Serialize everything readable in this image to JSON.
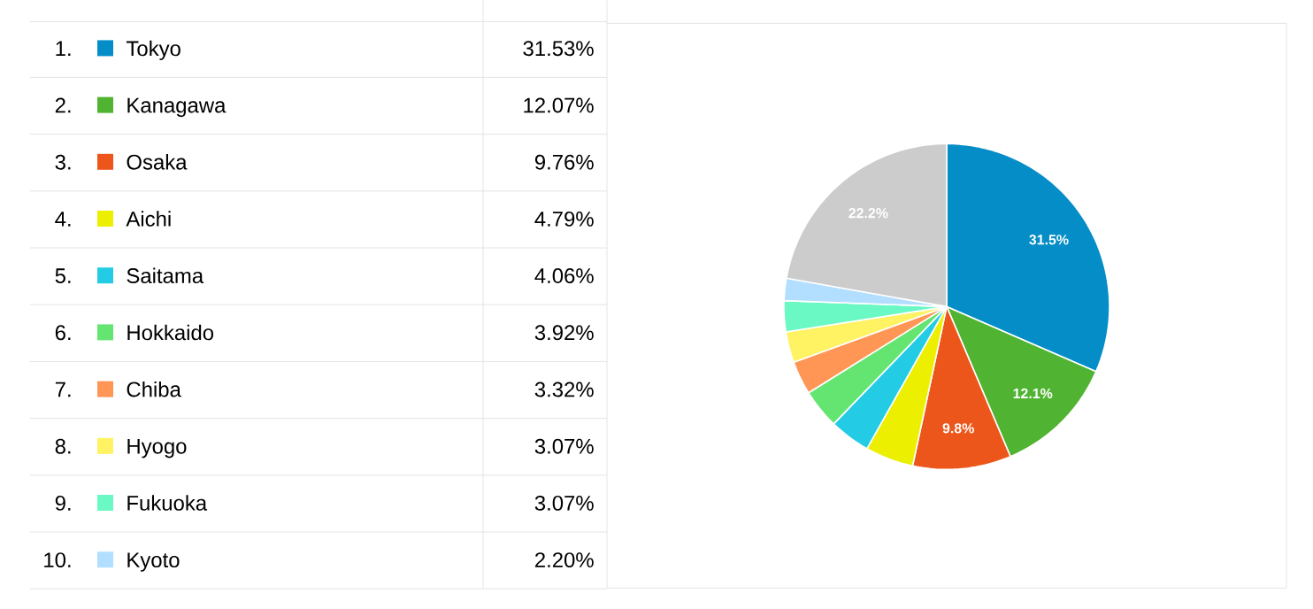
{
  "chart_data": {
    "type": "pie",
    "categories": [
      "Tokyo",
      "Kanagawa",
      "Osaka",
      "Aichi",
      "Saitama",
      "Hokkaido",
      "Chiba",
      "Hyogo",
      "Fukuoka",
      "Kyoto",
      null
    ],
    "values": [
      31.53,
      12.07,
      9.76,
      4.79,
      4.06,
      3.92,
      3.32,
      3.07,
      3.07,
      2.2,
      22.21
    ],
    "colors": [
      "#058dc7",
      "#50b432",
      "#ed561b",
      "#edef00",
      "#24cbe5",
      "#64e572",
      "#ff9655",
      "#fff263",
      "#6af9c4",
      "#b2deff",
      "#cccccc"
    ],
    "value_labels": [
      "31.5%",
      "12.1%",
      "9.8%",
      null,
      null,
      null,
      null,
      null,
      null,
      null,
      "22.2%"
    ],
    "annotations": [
      "1.",
      "2.",
      "3.",
      "4.",
      "5.",
      "6.",
      "7.",
      "8.",
      "9.",
      "10.",
      "31.53%",
      "12.07%",
      "9.76%",
      "4.79%",
      "4.06%",
      "3.92%",
      "3.32%",
      "3.07%",
      "3.07%",
      "2.20%"
    ],
    "legend": "left"
  }
}
